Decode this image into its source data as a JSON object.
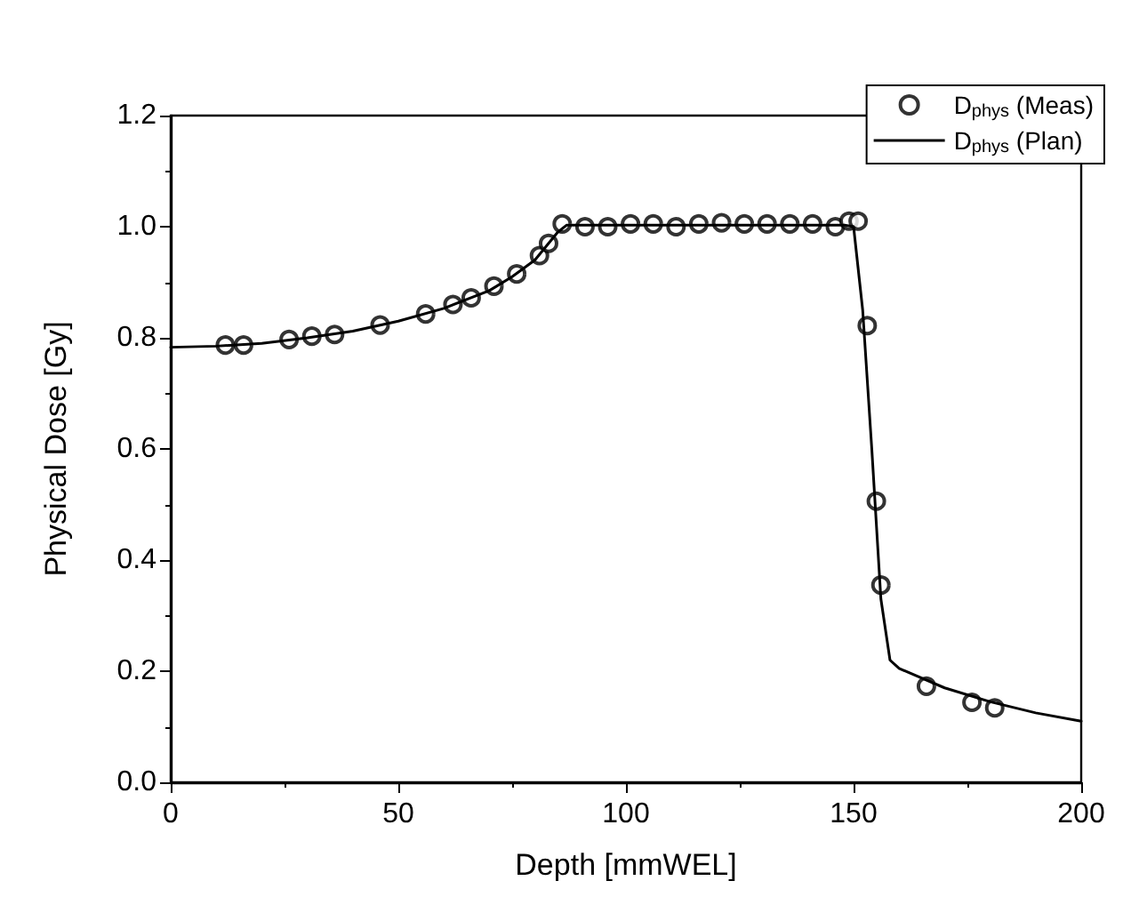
{
  "chart_data": {
    "type": "scatter",
    "xlabel": "Depth [mmWEL]",
    "ylabel": "Physical Dose [Gy]",
    "xlim": [
      0,
      200
    ],
    "xticks": [
      0,
      50,
      100,
      150,
      200
    ],
    "ylim": [
      0,
      1.2
    ],
    "yticks": [
      {
        "value": 0,
        "label": "0.0"
      },
      {
        "value": 0.2,
        "label": "0.2"
      },
      {
        "value": 0.4,
        "label": "0.4"
      },
      {
        "value": 0.6,
        "label": "0.6"
      },
      {
        "value": 0.8,
        "label": "0.8"
      },
      {
        "value": 1,
        "label": "1.0"
      },
      {
        "value": 1.2,
        "label": "1.2"
      }
    ],
    "grid": false,
    "legend": "top right",
    "series": [
      {
        "name": "D$_{phys}$ (Meas)",
        "marker": "circle",
        "color": "#000000",
        "x": [
          12,
          16,
          26,
          31,
          36,
          46,
          56,
          62,
          66,
          71,
          76,
          81,
          83,
          86,
          91,
          96,
          101,
          106,
          111,
          116,
          121,
          126,
          131,
          136,
          141,
          146,
          149,
          151,
          153,
          155,
          156,
          166,
          176,
          181
        ],
        "values": [
          0.787,
          0.787,
          0.797,
          0.803,
          0.806,
          0.823,
          0.843,
          0.86,
          0.872,
          0.893,
          0.915,
          0.948,
          0.97,
          1.005,
          1.0,
          1.0,
          1.005,
          1.005,
          1.0,
          1.005,
          1.007,
          1.005,
          1.005,
          1.005,
          1.005,
          1.0,
          1.01,
          1.01,
          0.822,
          0.506,
          0.355,
          0.173,
          0.144,
          0.134
        ]
      },
      {
        "name": "D$_{phys}$ (Plan)",
        "type": "line",
        "marker": "none",
        "line_style": "solid",
        "color": "#000000",
        "x": [
          0,
          10,
          20,
          30,
          40,
          50,
          60,
          70,
          75,
          80,
          85,
          87,
          100,
          148,
          150,
          152,
          154,
          156,
          158,
          160,
          170,
          180,
          190,
          200
        ],
        "values": [
          0.783,
          0.785,
          0.79,
          0.8,
          0.812,
          0.83,
          0.853,
          0.885,
          0.91,
          0.94,
          0.99,
          1.003,
          1.003,
          1.003,
          1.0,
          0.85,
          0.6,
          0.33,
          0.22,
          0.205,
          0.17,
          0.145,
          0.125,
          0.11
        ]
      }
    ]
  }
}
